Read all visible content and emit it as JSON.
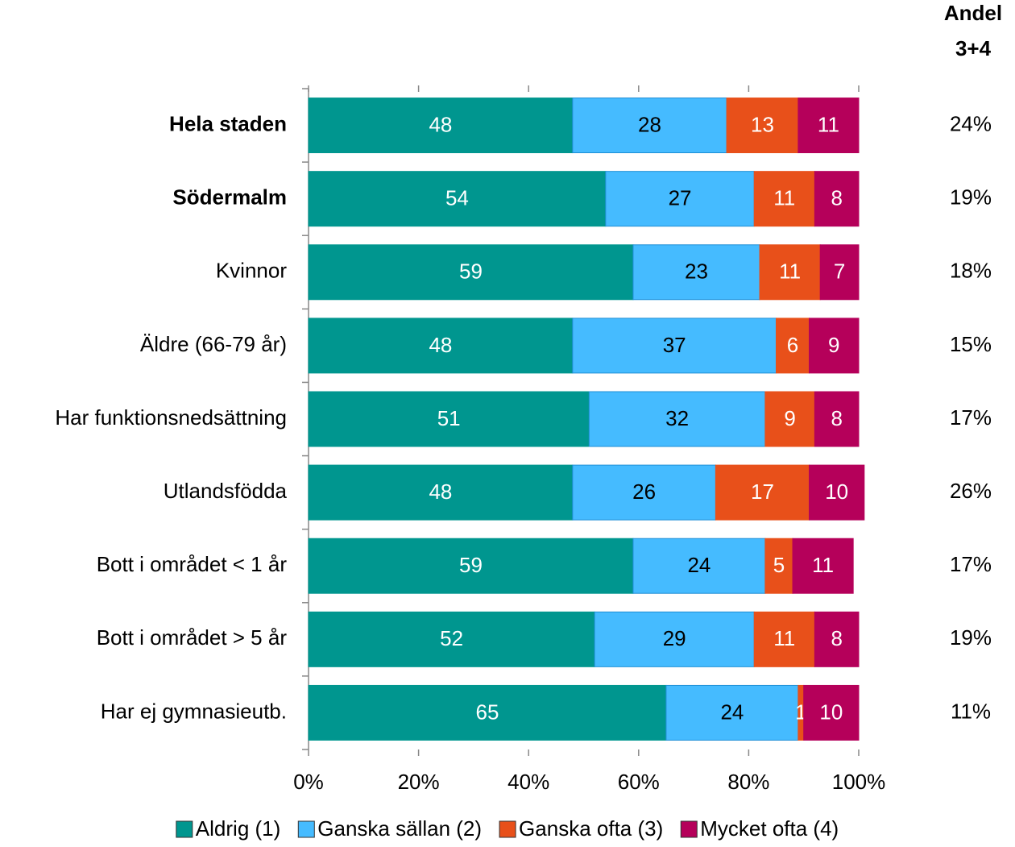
{
  "chart_data": {
    "type": "stacked_barh",
    "categories": [
      "Hela staden",
      "Södermalm",
      "Kvinnor",
      "Äldre (66-79 år)",
      "Har funktionsnedsättning",
      "Utlandsfödda",
      "Bott i området < 1 år",
      "Bott i området > 5 år",
      "Har ej gymnasieutb."
    ],
    "highlight": [
      true,
      true,
      false,
      false,
      false,
      false,
      false,
      false,
      false
    ],
    "series": [
      {
        "name": "Aldrig (1)",
        "color": "#00968f",
        "label_color": "#ffffff",
        "values": [
          48,
          54,
          59,
          48,
          51,
          48,
          59,
          52,
          65
        ]
      },
      {
        "name": "Ganska sällan (2)",
        "color": "#45bbff",
        "label_color": "#000000",
        "values": [
          28,
          27,
          23,
          37,
          32,
          26,
          24,
          29,
          24
        ]
      },
      {
        "name": "Ganska ofta (3)",
        "color": "#e8501a",
        "label_color": "#ffffff",
        "values": [
          13,
          11,
          11,
          6,
          9,
          17,
          5,
          11,
          1
        ]
      },
      {
        "name": "Mycket ofta (4)",
        "color": "#b5005a",
        "label_color": "#ffffff",
        "values": [
          11,
          8,
          7,
          9,
          8,
          10,
          11,
          8,
          10
        ]
      }
    ],
    "xlim": [
      0,
      100
    ],
    "xticks": [
      {
        "value": 0,
        "label": "0%"
      },
      {
        "value": 20,
        "label": "20%"
      },
      {
        "value": 40,
        "label": "40%"
      },
      {
        "value": 60,
        "label": "60%"
      },
      {
        "value": 80,
        "label": "80%"
      },
      {
        "value": 100,
        "label": "100%"
      }
    ],
    "side_title": "Andel 3+4",
    "side_values": [
      24,
      19,
      18,
      15,
      17,
      26,
      17,
      19,
      11
    ],
    "side_value_labels": [
      "24%",
      "19%",
      "18%",
      "15%",
      "17%",
      "26%",
      "17%",
      "19%",
      "11%"
    ],
    "legend": "bottom"
  }
}
